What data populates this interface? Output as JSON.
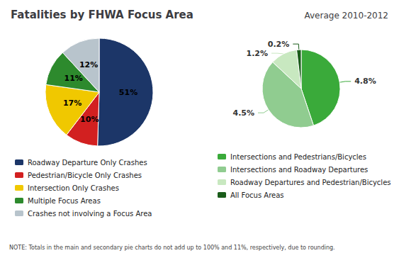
{
  "chart_data": [
    {
      "type": "pie",
      "title": "Fatalities by FHWA Focus Area",
      "subtitle": "Average 2010-2012",
      "annotations": [
        "NOTE: Totals in the main and secondary pie charts do not add up to 100% and 11%, respectively, due to rounding."
      ],
      "categories": [
        "Roadway Departure Only Crashes",
        "Pedestrian/Bicycle Only Crashes",
        "Intersection Only Crashes",
        "Multiple Focus Areas",
        "Crashes not involving a Focus Area"
      ],
      "values": [
        51,
        10,
        17,
        11,
        12
      ],
      "value_labels": [
        "51%",
        "10%",
        "17%",
        "11%",
        "12%"
      ],
      "colors": [
        "#1c3668",
        "#d22020",
        "#f0c800",
        "#2d8a2d",
        "#b8c4cc"
      ],
      "data_labels": true,
      "legend": "bottom"
    },
    {
      "type": "pie",
      "categories": [
        "Intersections and Pedestrians/Bicycles",
        "Intersections and Roadway Departures",
        "Roadway Departures and Pedestrian/Bicycles",
        "All Focus Areas"
      ],
      "values": [
        4.8,
        4.5,
        1.2,
        0.2
      ],
      "value_labels": [
        "4.8%",
        "4.5%",
        "1.2%",
        "0.2%"
      ],
      "colors": [
        "#3aaa3a",
        "#90cc90",
        "#c8e8c0",
        "#1a5c1a"
      ],
      "data_labels": true,
      "legend": "bottom"
    }
  ]
}
